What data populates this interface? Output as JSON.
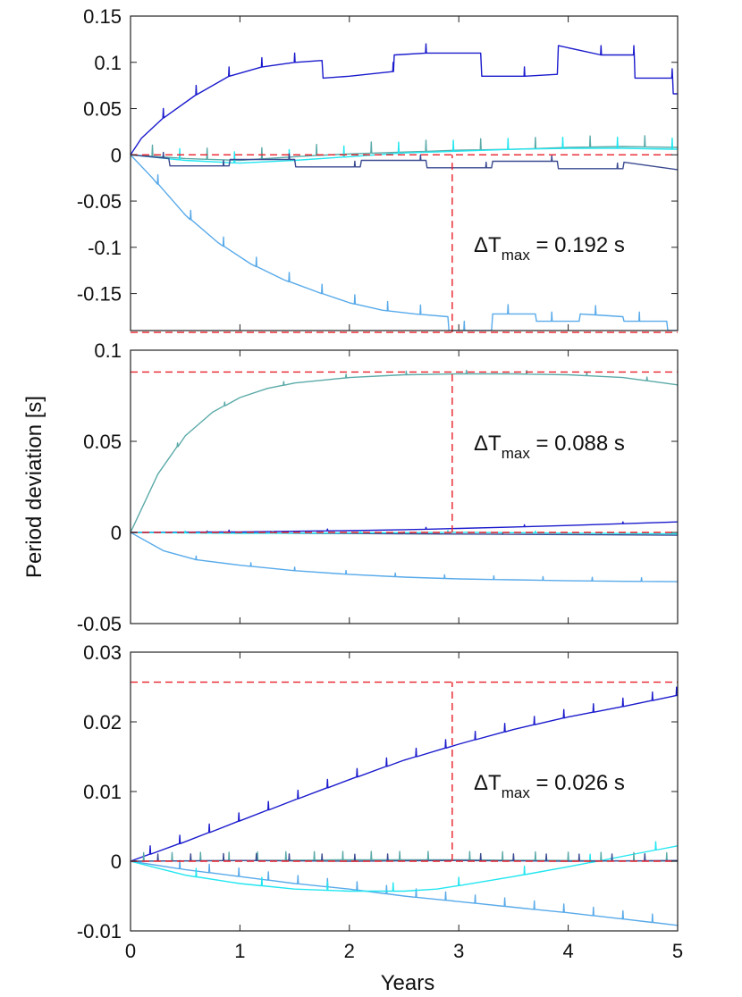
{
  "figure": {
    "ylabel": "Period deviation [s]",
    "xlabel": "Years"
  },
  "colors": {
    "navy": "#1a1acd",
    "sky": "#58aaea",
    "teal": "#5aaaa8",
    "cyan": "#22e6f0",
    "slate": "#3a4a90",
    "reference": "#e8202a"
  },
  "chart_data": [
    {
      "type": "line",
      "panel": "top",
      "xlim": [
        0,
        5
      ],
      "ylim": [
        -0.19,
        0.15
      ],
      "xticks": [
        "0",
        "1",
        "2",
        "3",
        "4",
        "5"
      ],
      "yticks": [
        {
          "value": 0.15,
          "label": "0.15"
        },
        {
          "value": 0.1,
          "label": "0.1"
        },
        {
          "value": 0.05,
          "label": "0.05"
        },
        {
          "value": 0,
          "label": "0"
        },
        {
          "value": -0.05,
          "label": "-0.05"
        },
        {
          "value": -0.1,
          "label": "-0.1"
        },
        {
          "value": -0.15,
          "label": "-0.15"
        }
      ],
      "annotation": {
        "delta": "ΔT",
        "sub": "max",
        "value": " = 0.192 s"
      },
      "reference": {
        "upper": 0,
        "lower": -0.192,
        "year": 2.94,
        "vline_from": -0.192,
        "vline_to": 0
      },
      "series": [
        {
          "name": "series-navy",
          "color": "navy",
          "spike": 0.01,
          "x": [
            0,
            0.1,
            0.3,
            0.6,
            0.9,
            1.2,
            1.5,
            1.75,
            1.76,
            2.0,
            2.4,
            2.41,
            2.7,
            3.0,
            3.2,
            3.21,
            3.6,
            3.9,
            3.91,
            4.3,
            4.6,
            4.61,
            4.95,
            4.96,
            5.0
          ],
          "y": [
            0,
            0.018,
            0.04,
            0.065,
            0.085,
            0.095,
            0.1,
            0.102,
            0.083,
            0.085,
            0.09,
            0.108,
            0.11,
            0.11,
            0.11,
            0.085,
            0.085,
            0.087,
            0.118,
            0.108,
            0.108,
            0.083,
            0.083,
            0.066,
            0.066
          ],
          "spikes_x": [
            0.3,
            0.6,
            0.9,
            1.2,
            1.5,
            2.4,
            2.7,
            3.6,
            4.3,
            4.6,
            4.95
          ]
        },
        {
          "name": "series-sky",
          "color": "sky",
          "spike": 0.01,
          "x": [
            0,
            0.2,
            0.5,
            0.8,
            1.1,
            1.4,
            1.7,
            2.0,
            2.3,
            2.6,
            2.9,
            2.91,
            3.3,
            3.31,
            3.7,
            3.71,
            4.1,
            4.11,
            4.5,
            4.51,
            4.9,
            4.91,
            5.0
          ],
          "y": [
            0,
            -0.025,
            -0.065,
            -0.095,
            -0.118,
            -0.135,
            -0.148,
            -0.16,
            -0.168,
            -0.172,
            -0.175,
            -0.19,
            -0.19,
            -0.172,
            -0.172,
            -0.18,
            -0.18,
            -0.172,
            -0.175,
            -0.18,
            -0.18,
            -0.19,
            -0.19
          ],
          "spikes_x": [
            0.25,
            0.55,
            0.85,
            1.15,
            1.45,
            1.75,
            2.05,
            2.35,
            2.65,
            3.05,
            3.45,
            3.85,
            4.25,
            4.65
          ]
        },
        {
          "name": "series-teal",
          "color": "teal",
          "spike": 0.012,
          "x": [
            0,
            0.5,
            1.0,
            1.5,
            2.0,
            2.5,
            3.0,
            3.5,
            4.0,
            4.5,
            5.0
          ],
          "y": [
            0,
            -0.004,
            -0.006,
            -0.002,
            0.001,
            0.003,
            0.005,
            0.006,
            0.008,
            0.009,
            0.008
          ],
          "spikes_x": [
            0.2,
            0.7,
            1.2,
            1.7,
            2.2,
            2.7,
            3.2,
            3.7,
            4.2,
            4.7
          ]
        },
        {
          "name": "series-cyan",
          "color": "cyan",
          "spike": 0.012,
          "x": [
            0,
            0.5,
            1.0,
            1.5,
            2.0,
            2.5,
            3.0,
            3.5,
            4.0,
            4.5,
            5.0
          ],
          "y": [
            0,
            -0.006,
            -0.009,
            -0.006,
            -0.002,
            0.002,
            0.004,
            0.006,
            0.007,
            0.007,
            0.006
          ],
          "spikes_x": [
            0.45,
            0.95,
            1.45,
            1.95,
            2.45,
            2.95,
            3.45,
            3.95,
            4.45,
            4.95
          ]
        },
        {
          "name": "series-slate",
          "color": "slate",
          "spike": 0.006,
          "x": [
            0,
            0.35,
            0.36,
            0.9,
            0.91,
            1.5,
            1.51,
            2.1,
            2.11,
            2.7,
            2.71,
            3.3,
            3.31,
            3.9,
            3.91,
            4.5,
            4.51,
            5.0
          ],
          "y": [
            0,
            -0.004,
            -0.012,
            -0.012,
            -0.005,
            -0.005,
            -0.013,
            -0.013,
            -0.006,
            -0.006,
            -0.014,
            -0.014,
            -0.007,
            -0.007,
            -0.015,
            -0.015,
            -0.008,
            -0.016
          ],
          "spikes_x": [
            0.3,
            0.85,
            1.45,
            2.05,
            2.65,
            3.25,
            3.85,
            4.45
          ]
        }
      ]
    },
    {
      "type": "line",
      "panel": "middle",
      "xlim": [
        0,
        5
      ],
      "ylim": [
        -0.05,
        0.1
      ],
      "xticks": [
        "0",
        "1",
        "2",
        "3",
        "4",
        "5"
      ],
      "yticks": [
        {
          "value": 0.1,
          "label": "0.1"
        },
        {
          "value": 0.05,
          "label": "0.05"
        },
        {
          "value": 0,
          "label": "0"
        },
        {
          "value": -0.05,
          "label": "-0.05"
        }
      ],
      "annotation": {
        "delta": "ΔT",
        "sub": "max",
        "value": " = 0.088 s"
      },
      "reference": {
        "upper": 0.088,
        "lower": 0,
        "year": 2.94,
        "vline_from": 0,
        "vline_to": 0.088
      },
      "series": [
        {
          "name": "series-teal",
          "color": "teal",
          "spike": 0.002,
          "x": [
            0,
            0.25,
            0.5,
            0.75,
            1.0,
            1.25,
            1.5,
            2.0,
            2.5,
            3.0,
            3.5,
            4.0,
            4.5,
            5.0
          ],
          "y": [
            0,
            0.032,
            0.053,
            0.066,
            0.074,
            0.079,
            0.082,
            0.085,
            0.0865,
            0.087,
            0.087,
            0.0865,
            0.085,
            0.081
          ],
          "spikes_x": [
            0.43,
            0.86,
            1.4,
            1.97,
            2.52,
            3.07,
            3.62,
            4.17,
            4.72
          ]
        },
        {
          "name": "series-sky",
          "color": "sky",
          "spike": 0.002,
          "x": [
            0,
            0.3,
            0.6,
            1.0,
            1.5,
            2.0,
            2.5,
            3.0,
            3.5,
            4.0,
            4.5,
            5.0
          ],
          "y": [
            0,
            -0.01,
            -0.015,
            -0.018,
            -0.021,
            -0.023,
            -0.0245,
            -0.0255,
            -0.026,
            -0.0265,
            -0.0268,
            -0.027
          ],
          "spikes_x": [
            0.6,
            1.1,
            1.5,
            1.97,
            2.42,
            2.87,
            3.32,
            3.77,
            4.22,
            4.67
          ]
        },
        {
          "name": "series-navy",
          "color": "navy",
          "spike": 0.001,
          "x": [
            0,
            1.0,
            2.0,
            2.5,
            3.0,
            3.5,
            4.0,
            4.5,
            5.0
          ],
          "y": [
            0,
            0.0003,
            0.001,
            0.0015,
            0.0022,
            0.003,
            0.0038,
            0.0048,
            0.0058
          ],
          "spikes_x": [
            0.9,
            1.8,
            2.7,
            3.6,
            4.5
          ]
        },
        {
          "name": "series-slate",
          "color": "slate",
          "spike": 0.001,
          "x": [
            0,
            1.0,
            2.0,
            3.0,
            4.0,
            5.0
          ],
          "y": [
            0,
            -0.0003,
            -0.0006,
            -0.0009,
            -0.0012,
            -0.0015
          ],
          "spikes_x": [
            0.7,
            1.6,
            2.5,
            3.4,
            4.3
          ]
        },
        {
          "name": "series-cyan",
          "color": "cyan",
          "spike": 0.001,
          "x": [
            0,
            1.0,
            2.0,
            3.0,
            4.0,
            5.0
          ],
          "y": [
            0,
            -0.0005,
            -0.0003,
            0.0001,
            -0.0004,
            -0.0008
          ],
          "spikes_x": [
            0.5,
            1.3,
            2.1,
            2.9,
            3.7
          ]
        }
      ]
    },
    {
      "type": "line",
      "panel": "bottom",
      "xlim": [
        0,
        5
      ],
      "ylim": [
        -0.01,
        0.03
      ],
      "xticks": [
        "0",
        "1",
        "2",
        "3",
        "4",
        "5"
      ],
      "yticks": [
        {
          "value": 0.03,
          "label": "0.03"
        },
        {
          "value": 0.02,
          "label": "0.02"
        },
        {
          "value": 0.01,
          "label": "0.01"
        },
        {
          "value": 0,
          "label": "0"
        },
        {
          "value": -0.01,
          "label": "-0.01"
        }
      ],
      "annotation": {
        "delta": "ΔT",
        "sub": "max",
        "value": " = 0.026 s"
      },
      "reference": {
        "upper": 0.0257,
        "lower": 0,
        "year": 2.94,
        "vline_from": 0,
        "vline_to": 0.0257
      },
      "series": [
        {
          "name": "series-navy",
          "color": "navy",
          "spike": 0.0012,
          "x": [
            0,
            0.5,
            1.0,
            1.5,
            2.0,
            2.5,
            3.0,
            3.5,
            4.0,
            4.5,
            5.0
          ],
          "y": [
            0,
            0.0028,
            0.0058,
            0.0088,
            0.0117,
            0.0145,
            0.0168,
            0.0189,
            0.0207,
            0.0222,
            0.0238
          ],
          "spikes_x": [
            0.18,
            0.45,
            0.72,
            0.99,
            1.26,
            1.53,
            1.8,
            2.07,
            2.34,
            2.61,
            2.88,
            3.15,
            3.42,
            3.69,
            3.96,
            4.23,
            4.5,
            4.77,
            4.99
          ]
        },
        {
          "name": "series-sky",
          "color": "sky",
          "spike": 0.0012,
          "x": [
            0,
            0.5,
            1.0,
            1.5,
            2.0,
            2.5,
            3.0,
            3.5,
            4.0,
            4.5,
            5.0
          ],
          "y": [
            0,
            -0.0012,
            -0.0022,
            -0.0032,
            -0.004,
            -0.005,
            -0.0058,
            -0.0066,
            -0.0074,
            -0.0083,
            -0.0092
          ],
          "spikes_x": [
            0.45,
            0.72,
            0.99,
            1.26,
            1.53,
            1.8,
            2.07,
            2.34,
            2.61,
            2.88,
            3.15,
            3.42,
            3.69,
            3.96,
            4.23,
            4.5,
            4.77
          ]
        },
        {
          "name": "series-cyan",
          "color": "cyan",
          "spike": 0.0012,
          "x": [
            0,
            0.5,
            1.0,
            1.5,
            2.0,
            2.5,
            2.8,
            3.0,
            3.5,
            4.0,
            4.5,
            5.0
          ],
          "y": [
            0,
            -0.002,
            -0.0032,
            -0.004,
            -0.0043,
            -0.0043,
            -0.004,
            -0.0035,
            -0.0022,
            -0.0008,
            0.0007,
            0.0022
          ],
          "spikes_x": [
            0.6,
            1.2,
            1.8,
            2.4,
            3.0,
            3.6,
            4.2,
            4.8
          ]
        },
        {
          "name": "series-teal",
          "color": "teal",
          "spike": 0.0012,
          "x": [
            0,
            1.0,
            2.0,
            3.0,
            4.0,
            5.0
          ],
          "y": [
            0,
            0.0001,
            0.0002,
            0.0002,
            0.0001,
            0
          ],
          "spikes_x": [
            0.12,
            0.38,
            0.64,
            0.9,
            1.16,
            1.42,
            1.68,
            1.94,
            2.2,
            2.46,
            2.72,
            3.1,
            3.4,
            3.7,
            4.0,
            4.3,
            4.6,
            4.9
          ]
        },
        {
          "name": "series-slate",
          "color": "slate",
          "spike": 0.001,
          "x": [
            0,
            1.0,
            2.0,
            3.0,
            4.0,
            5.0
          ],
          "y": [
            0,
            0.0001,
            0,
            0.0001,
            0,
            0.0001
          ],
          "spikes_x": [
            0.25,
            0.55,
            0.85,
            1.15,
            1.45,
            1.75,
            2.05,
            2.35,
            3.2,
            3.5,
            3.8,
            4.1,
            4.4,
            4.7
          ]
        }
      ]
    }
  ]
}
